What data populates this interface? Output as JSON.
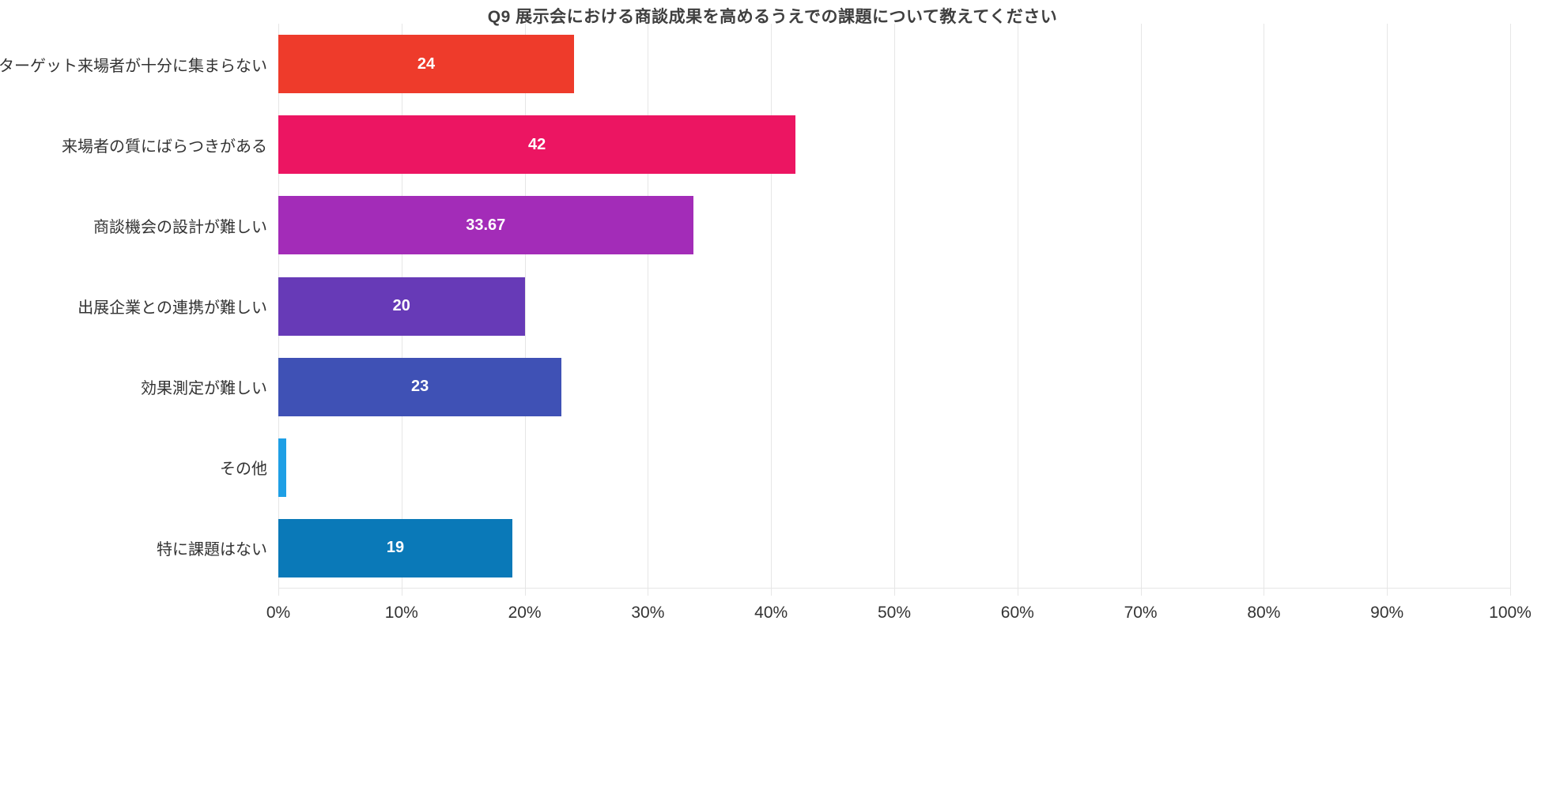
{
  "chart_data": {
    "type": "bar",
    "orientation": "horizontal",
    "title": "Q9 展示会における商談成果を高めるうえでの課題について教えてください",
    "categories": [
      "ターゲット来場者が十分に集まらない",
      "来場者の質にばらつきがある",
      "商談機会の設計が難しい",
      "出展企業との連携が難しい",
      "効果測定が難しい",
      "その他",
      "特に課題はない"
    ],
    "values": [
      24,
      42,
      33.67,
      20,
      23,
      0.67,
      19
    ],
    "data_labels": [
      "24",
      "42",
      "33.67",
      "20",
      "23",
      "",
      "19"
    ],
    "bar_colors": [
      "#ee3b2b",
      "#ec1562",
      "#a32cb8",
      "#673ab7",
      "#3f51b5",
      "#1e9fe5",
      "#0a79b8"
    ],
    "xlabel": "",
    "ylabel": "",
    "xlim": [
      0,
      100
    ],
    "x_ticks": [
      "0%",
      "10%",
      "20%",
      "30%",
      "40%",
      "50%",
      "60%",
      "70%",
      "80%",
      "90%",
      "100%"
    ],
    "grid": true,
    "legend": "none",
    "colors": {
      "background": "#ffffff",
      "grid": "#e6e6e6",
      "title": "#3f3f3f",
      "axis_label": "#333333",
      "data_label": "#ffffff"
    }
  }
}
